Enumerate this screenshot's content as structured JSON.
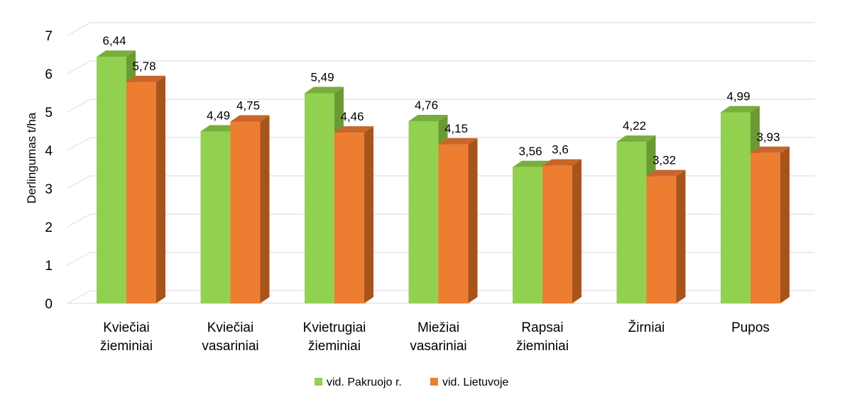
{
  "chart_data": {
    "type": "bar",
    "title": "",
    "xlabel": "",
    "ylabel": "Derlingumas t/ha",
    "ylim": [
      0,
      7
    ],
    "yticks": [
      "0",
      "1",
      "2",
      "3",
      "4",
      "5",
      "6",
      "7"
    ],
    "grid": true,
    "legend_position": "bottom",
    "categories": [
      [
        "Kviečiai",
        "žieminiai"
      ],
      [
        "Kviečiai",
        "vasariniai"
      ],
      [
        "Kvietrugiai",
        "žieminiai"
      ],
      [
        "Miežiai",
        "vasariniai"
      ],
      [
        "Rapsai",
        "žieminiai"
      ],
      [
        "Žirniai"
      ],
      [
        "Pupos"
      ]
    ],
    "series": [
      {
        "name": "vid. Pakruojo r.",
        "color": "#92d050",
        "values": [
          6.44,
          4.49,
          5.49,
          4.76,
          3.56,
          4.22,
          4.99
        ],
        "labels": [
          "6,44",
          "4,49",
          "5,49",
          "4,76",
          "3,56",
          "4,22",
          "4,99"
        ]
      },
      {
        "name": "vid. Lietuvoje",
        "color": "#ed7d31",
        "values": [
          5.78,
          4.75,
          4.46,
          4.15,
          3.6,
          3.32,
          3.93
        ],
        "labels": [
          "5,78",
          "4,75",
          "4,46",
          "4,15",
          "3,6",
          "3,32",
          "3,93"
        ]
      }
    ]
  }
}
